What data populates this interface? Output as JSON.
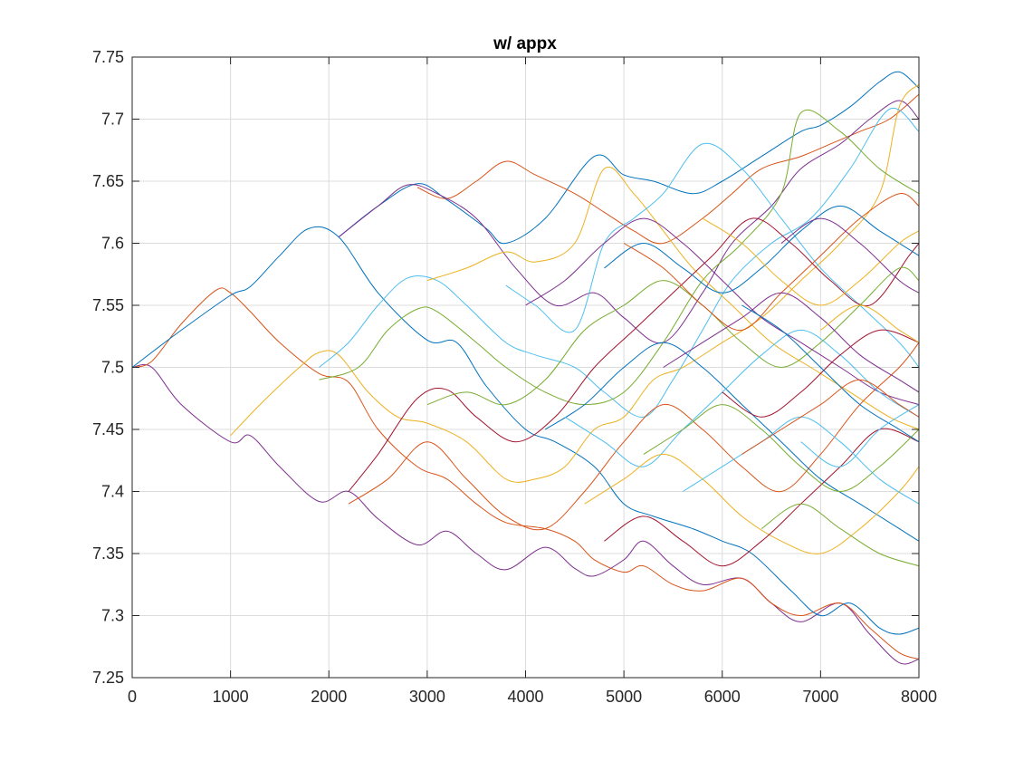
{
  "chart_data": {
    "type": "line",
    "title": "w/ appx",
    "xlabel": "",
    "ylabel": "",
    "xlim": [
      0,
      8000
    ],
    "ylim": [
      7.25,
      7.75
    ],
    "x_ticks": [
      0,
      1000,
      2000,
      3000,
      4000,
      5000,
      6000,
      7000,
      8000
    ],
    "x_tick_labels": [
      "0",
      "1000",
      "2000",
      "3000",
      "4000",
      "5000",
      "6000",
      "7000",
      "8000"
    ],
    "y_ticks": [
      7.25,
      7.3,
      7.35,
      7.4,
      7.45,
      7.5,
      7.55,
      7.6,
      7.65,
      7.7,
      7.75
    ],
    "y_tick_labels": [
      "7.25",
      "7.3",
      "7.35",
      "7.4",
      "7.45",
      "7.5",
      "7.55",
      "7.6",
      "7.65",
      "7.7",
      "7.75"
    ],
    "grid": true,
    "legend": "none",
    "colors": [
      "#0072BD",
      "#D95319",
      "#EDB120",
      "#7E2F8E",
      "#77AC30",
      "#4DBEEE",
      "#A2142F"
    ],
    "series": [
      {
        "color": "#7E2F8E",
        "x": [
          0,
          200,
          500,
          1000,
          1200,
          1500,
          1900,
          2200,
          2500,
          2900,
          3200,
          3500,
          3800,
          4200,
          4500,
          4700,
          5000,
          5200,
          5500,
          5800,
          6200,
          6500,
          6800,
          7200,
          7500,
          7800,
          8000
        ],
        "y": [
          7.5,
          7.5,
          7.47,
          7.44,
          7.445,
          7.42,
          7.392,
          7.4,
          7.378,
          7.357,
          7.368,
          7.35,
          7.337,
          7.355,
          7.338,
          7.332,
          7.345,
          7.36,
          7.34,
          7.325,
          7.33,
          7.31,
          7.295,
          7.31,
          7.285,
          7.262,
          7.265
        ]
      },
      {
        "color": "#D95319",
        "x": [
          0,
          200,
          500,
          850,
          1000,
          1200,
          1500,
          1900,
          2200,
          2500,
          2900,
          3200,
          3500,
          3800,
          4200,
          4500,
          4700,
          5000,
          5200,
          5500,
          5800,
          6200,
          6500,
          6800,
          7200,
          7500,
          7800,
          8000
        ],
        "y": [
          7.5,
          7.505,
          7.535,
          7.562,
          7.56,
          7.545,
          7.52,
          7.495,
          7.488,
          7.45,
          7.42,
          7.41,
          7.39,
          7.375,
          7.37,
          7.36,
          7.345,
          7.335,
          7.34,
          7.325,
          7.32,
          7.33,
          7.31,
          7.3,
          7.31,
          7.29,
          7.27,
          7.265
        ]
      },
      {
        "color": "#0072BD",
        "x": [
          0,
          500,
          1000,
          1200,
          1500,
          1800,
          2100,
          2500,
          3000,
          3300,
          3600,
          4000,
          4300,
          4700,
          5000,
          5300,
          5700,
          6000,
          6300,
          6700,
          7000,
          7300,
          7600,
          7800,
          8000
        ],
        "y": [
          7.5,
          7.53,
          7.558,
          7.565,
          7.59,
          7.612,
          7.605,
          7.56,
          7.522,
          7.52,
          7.485,
          7.45,
          7.44,
          7.42,
          7.39,
          7.38,
          7.37,
          7.36,
          7.35,
          7.32,
          7.3,
          7.31,
          7.29,
          7.285,
          7.29
        ]
      },
      {
        "color": "#0072BD",
        "x": [
          2100,
          2500,
          2900,
          3200,
          3600,
          3800,
          4200,
          4700,
          5000,
          5300,
          5700,
          6000,
          6400,
          6800,
          7000,
          7300,
          7600,
          7800,
          8000
        ],
        "y": [
          7.605,
          7.63,
          7.648,
          7.635,
          7.612,
          7.6,
          7.62,
          7.67,
          7.655,
          7.65,
          7.64,
          7.65,
          7.67,
          7.69,
          7.695,
          7.71,
          7.73,
          7.738,
          7.725
        ]
      },
      {
        "color": "#D95319",
        "x": [
          2900,
          3200,
          3500,
          3800,
          4100,
          4500,
          4800,
          5100,
          5400,
          5800,
          6100,
          6400,
          6800,
          7100,
          7400,
          7700,
          8000
        ],
        "y": [
          7.645,
          7.636,
          7.65,
          7.666,
          7.655,
          7.64,
          7.625,
          7.61,
          7.6,
          7.62,
          7.64,
          7.66,
          7.67,
          7.68,
          7.69,
          7.7,
          7.72
        ]
      },
      {
        "color": "#7E2F8E",
        "x": [
          2100,
          2500,
          2800,
          3100,
          3500,
          3900,
          4300,
          4700,
          5000,
          5400,
          5800,
          6100,
          6500,
          6800,
          7200,
          7500,
          7800,
          8000
        ],
        "y": [
          7.605,
          7.63,
          7.647,
          7.64,
          7.62,
          7.58,
          7.55,
          7.56,
          7.54,
          7.52,
          7.56,
          7.6,
          7.63,
          7.66,
          7.68,
          7.7,
          7.715,
          7.7
        ]
      },
      {
        "color": "#EDB120",
        "x": [
          1000,
          1300,
          1700,
          1900,
          2100,
          2400,
          2700,
          3000,
          3400,
          3800,
          4100,
          4400,
          4700,
          5000,
          5300,
          5600,
          6000,
          6400,
          6800,
          7200,
          7600,
          7800,
          8000
        ],
        "y": [
          7.445,
          7.47,
          7.5,
          7.512,
          7.51,
          7.48,
          7.46,
          7.455,
          7.44,
          7.41,
          7.41,
          7.42,
          7.45,
          7.46,
          7.49,
          7.5,
          7.52,
          7.54,
          7.57,
          7.6,
          7.64,
          7.71,
          7.728
        ]
      },
      {
        "color": "#4DBEEE",
        "x": [
          1900,
          2200,
          2500,
          2800,
          3100,
          3400,
          3800,
          4100,
          4500,
          4800,
          5200,
          5500,
          5800,
          6100,
          6500,
          6900,
          7300,
          7700,
          8000
        ],
        "y": [
          7.5,
          7.52,
          7.55,
          7.572,
          7.57,
          7.55,
          7.52,
          7.51,
          7.5,
          7.48,
          7.46,
          7.49,
          7.53,
          7.57,
          7.6,
          7.62,
          7.66,
          7.708,
          7.69
        ]
      },
      {
        "color": "#77AC30",
        "x": [
          1900,
          2300,
          2600,
          2900,
          3100,
          3500,
          3800,
          4200,
          4600,
          5000,
          5400,
          5800,
          6200,
          6600,
          6800,
          7200,
          7600,
          8000
        ],
        "y": [
          7.49,
          7.5,
          7.53,
          7.547,
          7.545,
          7.52,
          7.5,
          7.48,
          7.47,
          7.48,
          7.52,
          7.57,
          7.6,
          7.64,
          7.705,
          7.69,
          7.66,
          7.64
        ]
      },
      {
        "color": "#EDB120",
        "x": [
          3000,
          3400,
          3800,
          4100,
          4500,
          4800,
          5100,
          5400,
          5700,
          6100,
          6500,
          6900,
          7300,
          7700,
          8000
        ],
        "y": [
          7.57,
          7.58,
          7.593,
          7.585,
          7.6,
          7.66,
          7.64,
          7.61,
          7.58,
          7.55,
          7.52,
          7.5,
          7.48,
          7.46,
          7.45
        ]
      },
      {
        "color": "#4DBEEE",
        "x": [
          3800,
          4100,
          4500,
          4800,
          5100,
          5400,
          5800,
          6200,
          6600,
          7000,
          7400,
          7800,
          8000
        ],
        "y": [
          7.566,
          7.55,
          7.53,
          7.6,
          7.62,
          7.64,
          7.68,
          7.66,
          7.62,
          7.58,
          7.55,
          7.52,
          7.5
        ]
      },
      {
        "color": "#A2142F",
        "x": [
          2200,
          2500,
          2900,
          3200,
          3500,
          3900,
          4300,
          4700,
          5100,
          5500,
          5900,
          6300,
          6700,
          7100,
          7500,
          7900,
          8000
        ],
        "y": [
          7.4,
          7.43,
          7.475,
          7.482,
          7.46,
          7.44,
          7.46,
          7.5,
          7.53,
          7.56,
          7.59,
          7.62,
          7.6,
          7.57,
          7.55,
          7.59,
          7.6
        ]
      },
      {
        "color": "#D95319",
        "x": [
          2200,
          2600,
          3000,
          3400,
          3800,
          4200,
          4600,
          5000,
          5400,
          5800,
          6200,
          6600,
          7000,
          7400,
          7800,
          8000
        ],
        "y": [
          7.39,
          7.41,
          7.44,
          7.41,
          7.38,
          7.37,
          7.4,
          7.44,
          7.47,
          7.45,
          7.42,
          7.4,
          7.43,
          7.47,
          7.5,
          7.52
        ]
      },
      {
        "color": "#0072BD",
        "x": [
          4200,
          4600,
          5000,
          5400,
          5800,
          6200,
          6600,
          7000,
          7400,
          7800,
          8000
        ],
        "y": [
          7.45,
          7.47,
          7.5,
          7.52,
          7.5,
          7.47,
          7.44,
          7.41,
          7.39,
          7.37,
          7.36
        ]
      },
      {
        "color": "#77AC30",
        "x": [
          3000,
          3400,
          3800,
          4200,
          4600,
          5000,
          5400,
          5800,
          6200,
          6600,
          7000,
          7400,
          7800,
          8000
        ],
        "y": [
          7.47,
          7.48,
          7.47,
          7.49,
          7.53,
          7.55,
          7.57,
          7.55,
          7.52,
          7.5,
          7.52,
          7.55,
          7.58,
          7.57
        ]
      },
      {
        "color": "#7E2F8E",
        "x": [
          4000,
          4400,
          4800,
          5200,
          5600,
          6000,
          6400,
          6800,
          7200,
          7600,
          8000
        ],
        "y": [
          7.55,
          7.57,
          7.6,
          7.62,
          7.6,
          7.57,
          7.54,
          7.52,
          7.5,
          7.48,
          7.47
        ]
      },
      {
        "color": "#4DBEEE",
        "x": [
          4400,
          4800,
          5200,
          5600,
          6000,
          6400,
          6800,
          7200,
          7600,
          8000
        ],
        "y": [
          7.46,
          7.44,
          7.42,
          7.45,
          7.48,
          7.51,
          7.53,
          7.51,
          7.48,
          7.46
        ]
      },
      {
        "color": "#EDB120",
        "x": [
          4600,
          5000,
          5400,
          5800,
          6200,
          6600,
          7000,
          7400,
          7800,
          8000
        ],
        "y": [
          7.39,
          7.41,
          7.43,
          7.41,
          7.38,
          7.36,
          7.35,
          7.37,
          7.4,
          7.42
        ]
      },
      {
        "color": "#A2142F",
        "x": [
          4800,
          5200,
          5600,
          6000,
          6400,
          6800,
          7200,
          7600,
          8000
        ],
        "y": [
          7.36,
          7.38,
          7.36,
          7.34,
          7.36,
          7.39,
          7.42,
          7.45,
          7.44
        ]
      },
      {
        "color": "#0072BD",
        "x": [
          4800,
          5200,
          5600,
          6000,
          6400,
          6800,
          7200,
          7600,
          8000
        ],
        "y": [
          7.58,
          7.6,
          7.58,
          7.56,
          7.58,
          7.61,
          7.63,
          7.61,
          7.59
        ]
      },
      {
        "color": "#D95319",
        "x": [
          5000,
          5400,
          5800,
          6200,
          6600,
          7000,
          7400,
          7800,
          8000
        ],
        "y": [
          7.6,
          7.58,
          7.55,
          7.53,
          7.56,
          7.59,
          7.62,
          7.64,
          7.63
        ]
      },
      {
        "color": "#77AC30",
        "x": [
          5200,
          5600,
          6000,
          6400,
          6800,
          7200,
          7600,
          8000
        ],
        "y": [
          7.43,
          7.45,
          7.47,
          7.45,
          7.42,
          7.4,
          7.42,
          7.45
        ]
      },
      {
        "color": "#7E2F8E",
        "x": [
          5400,
          5800,
          6200,
          6600,
          7000,
          7400,
          7800,
          8000
        ],
        "y": [
          7.5,
          7.52,
          7.54,
          7.56,
          7.54,
          7.51,
          7.49,
          7.48
        ]
      },
      {
        "color": "#4DBEEE",
        "x": [
          5600,
          6000,
          6400,
          6800,
          7200,
          7600,
          8000
        ],
        "y": [
          7.4,
          7.42,
          7.44,
          7.46,
          7.44,
          7.41,
          7.39
        ]
      },
      {
        "color": "#EDB120",
        "x": [
          5800,
          6200,
          6600,
          7000,
          7400,
          7800,
          8000
        ],
        "y": [
          7.62,
          7.6,
          7.57,
          7.55,
          7.57,
          7.6,
          7.61
        ]
      },
      {
        "color": "#A2142F",
        "x": [
          6000,
          6400,
          6800,
          7200,
          7600,
          8000
        ],
        "y": [
          7.48,
          7.46,
          7.48,
          7.51,
          7.53,
          7.52
        ]
      },
      {
        "color": "#0072BD",
        "x": [
          6200,
          6600,
          7000,
          7400,
          7800,
          8000
        ],
        "y": [
          7.55,
          7.53,
          7.5,
          7.47,
          7.45,
          7.44
        ]
      },
      {
        "color": "#D95319",
        "x": [
          6200,
          6600,
          7000,
          7400,
          7800,
          8000
        ],
        "y": [
          7.43,
          7.45,
          7.47,
          7.49,
          7.47,
          7.46
        ]
      },
      {
        "color": "#77AC30",
        "x": [
          6400,
          6800,
          7200,
          7600,
          8000
        ],
        "y": [
          7.37,
          7.39,
          7.37,
          7.35,
          7.34
        ]
      },
      {
        "color": "#7E2F8E",
        "x": [
          6600,
          7000,
          7400,
          7800,
          8000
        ],
        "y": [
          7.6,
          7.62,
          7.6,
          7.57,
          7.56
        ]
      },
      {
        "color": "#4DBEEE",
        "x": [
          6800,
          7200,
          7600,
          8000
        ],
        "y": [
          7.44,
          7.42,
          7.45,
          7.47
        ]
      },
      {
        "color": "#EDB120",
        "x": [
          7000,
          7400,
          7800,
          8000
        ],
        "y": [
          7.53,
          7.55,
          7.53,
          7.52
        ]
      }
    ]
  }
}
